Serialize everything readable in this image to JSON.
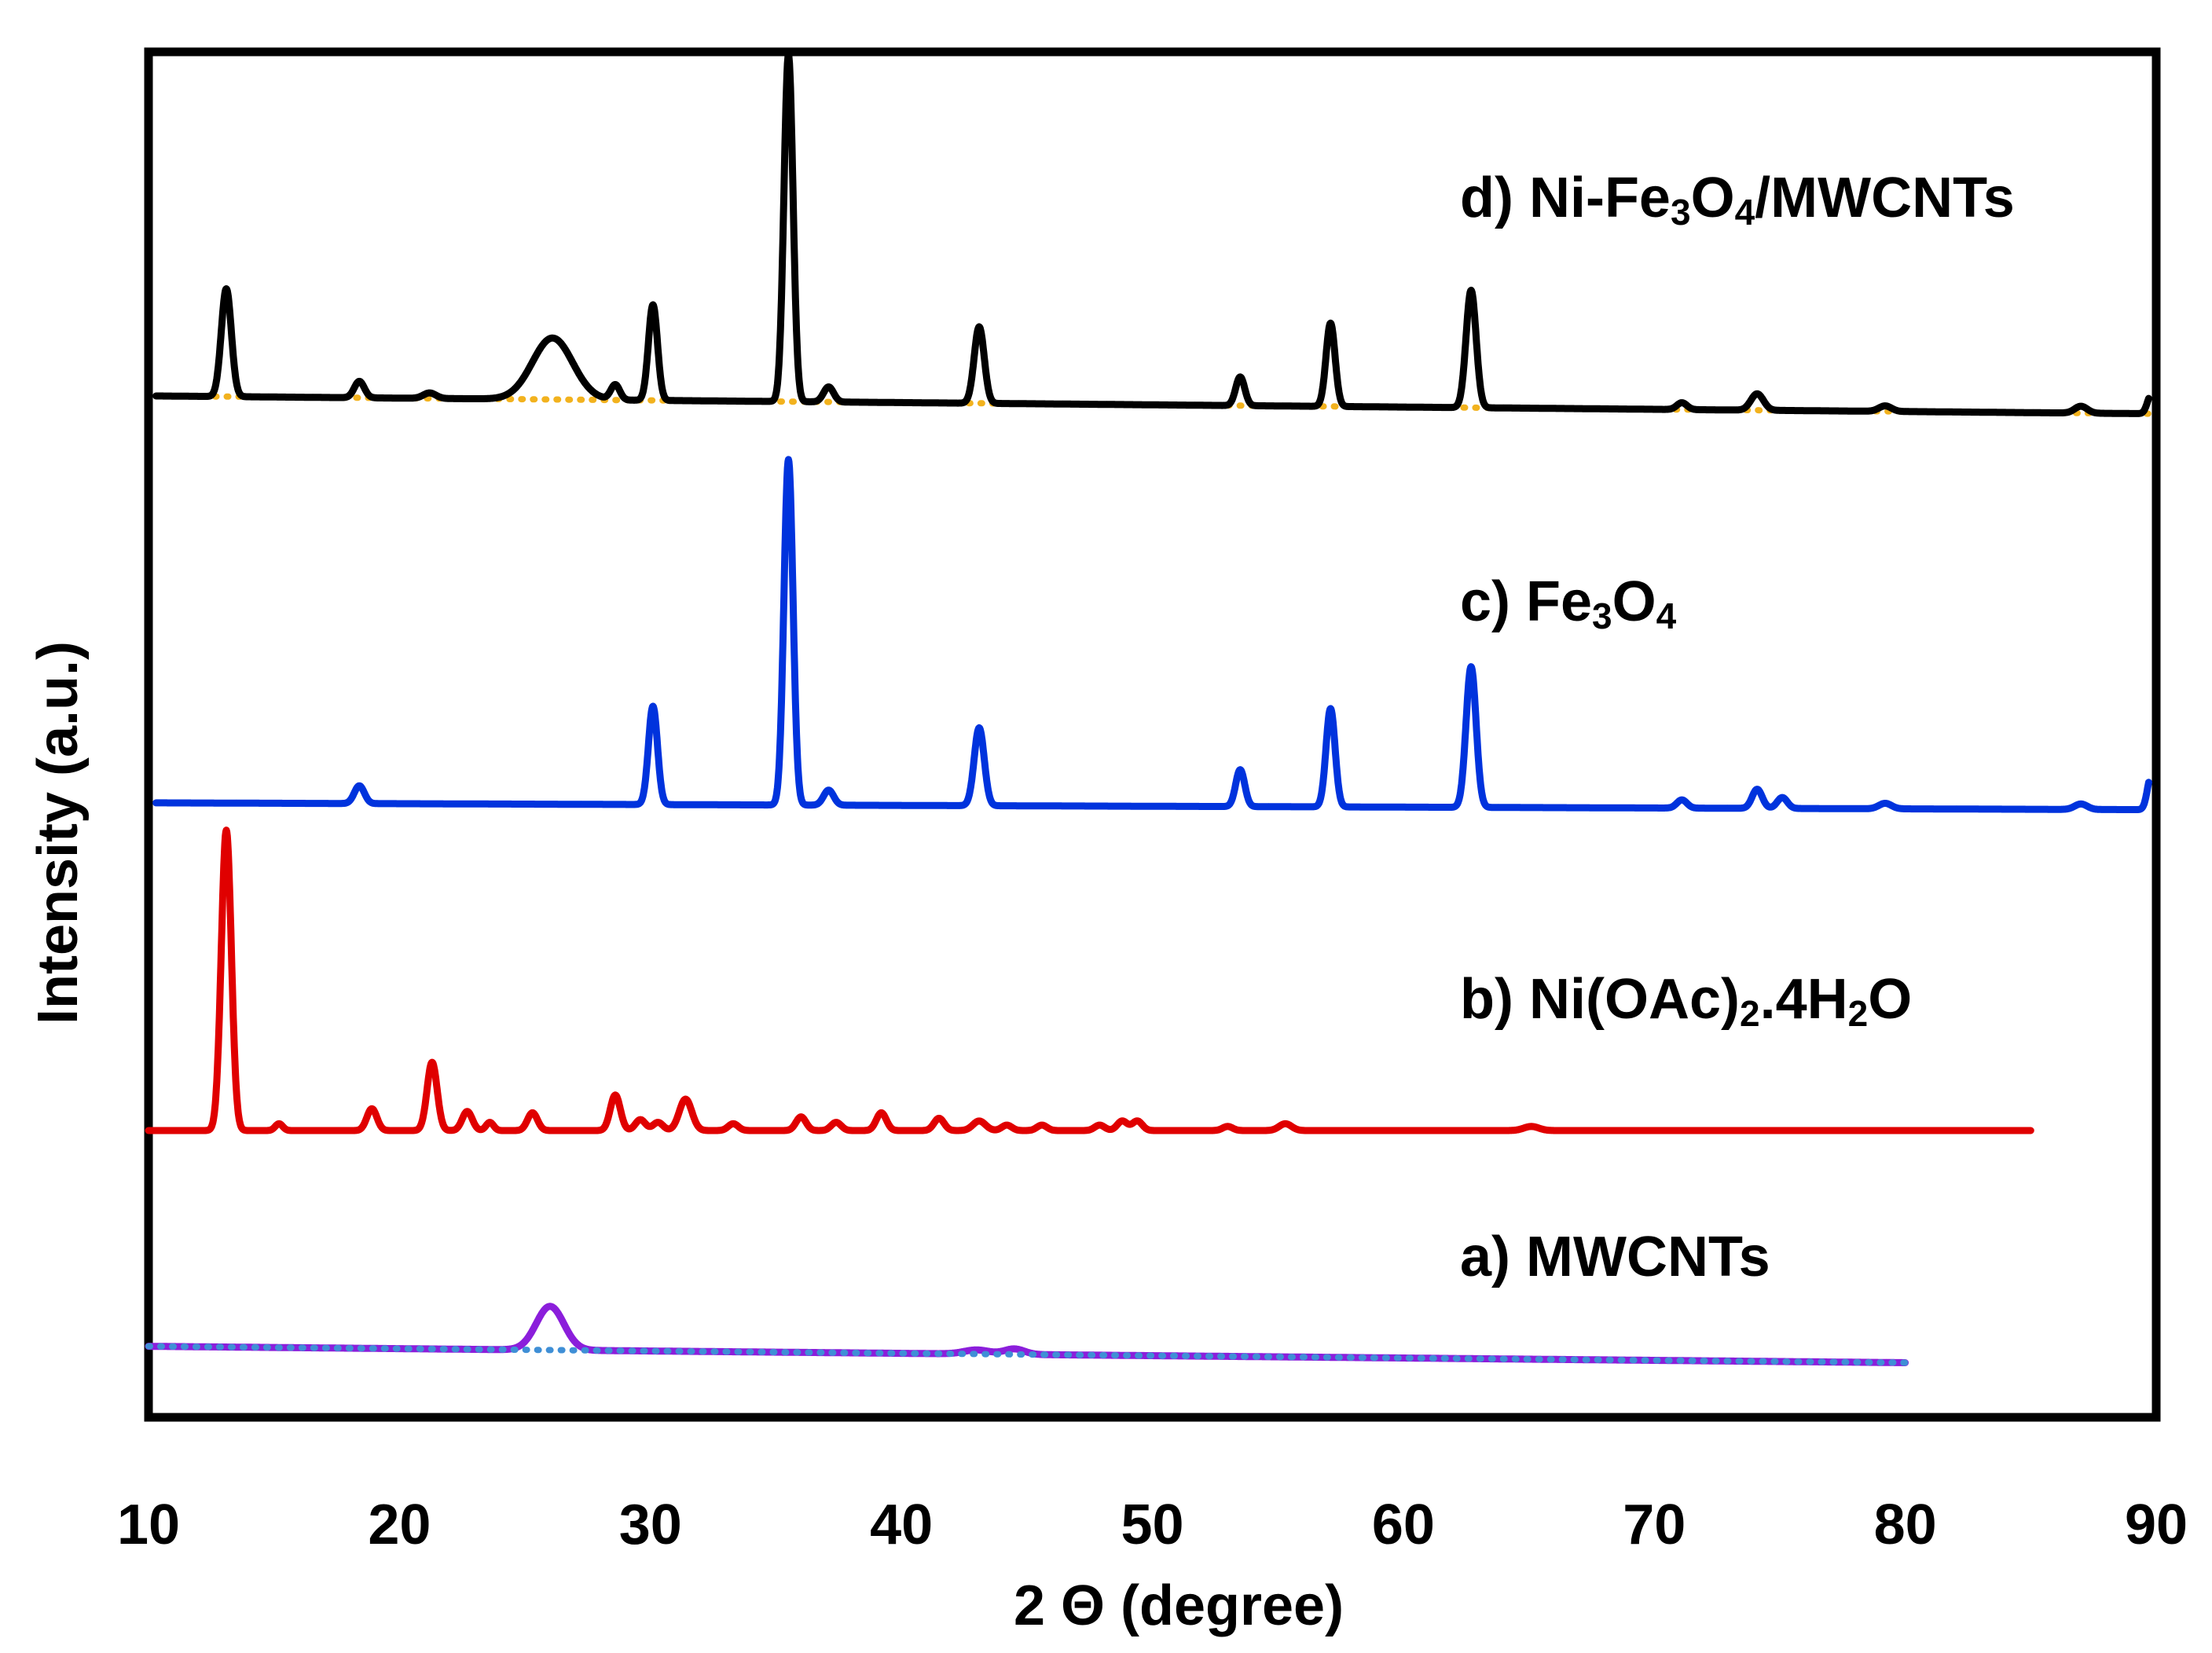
{
  "chart_data": {
    "type": "line",
    "title": "",
    "xlabel": "2 Θ (degree)",
    "ylabel": "Intensity (a.u.)",
    "xlim": [
      10,
      90
    ],
    "ylim": [
      0,
      100
    ],
    "x_ticks": [
      "10",
      "20",
      "30",
      "40",
      "50",
      "60",
      "70",
      "80",
      "90"
    ],
    "grid": false,
    "legend": "none (series labelled inline)",
    "series": [
      {
        "name": "a) MWCNTs",
        "label_main": "a) MWCNTs",
        "color": "#8B1EDB",
        "baseline_color": "#3F8FD6",
        "x_range": [
          10,
          80
        ],
        "baseline_start": 5.2,
        "baseline_end": 4.0,
        "peaks": [
          [
            26.0,
            3.2,
            0.55
          ],
          [
            43.0,
            0.3,
            0.5
          ],
          [
            44.5,
            0.4,
            0.4
          ]
        ]
      },
      {
        "name": "b) Ni(OAc)2.4H2O",
        "label_main": "b) Ni(OAc)",
        "label_sub1": "2",
        "label_mid": ".4H",
        "label_sub2": "2",
        "label_end": "O",
        "color": "#E00000",
        "x_range": [
          10,
          85
        ],
        "baseline_start": 21.0,
        "baseline_end": 21.0,
        "peaks": [
          [
            13.1,
            22.0,
            0.2
          ],
          [
            15.2,
            0.5,
            0.15
          ],
          [
            18.9,
            1.6,
            0.2
          ],
          [
            21.3,
            5.0,
            0.2
          ],
          [
            22.7,
            1.4,
            0.2
          ],
          [
            23.6,
            0.6,
            0.15
          ],
          [
            25.3,
            1.3,
            0.2
          ],
          [
            28.6,
            2.6,
            0.2
          ],
          [
            29.6,
            0.8,
            0.2
          ],
          [
            30.3,
            0.6,
            0.2
          ],
          [
            31.4,
            2.3,
            0.25
          ],
          [
            33.3,
            0.5,
            0.2
          ],
          [
            36.0,
            1.0,
            0.2
          ],
          [
            37.4,
            0.6,
            0.2
          ],
          [
            39.2,
            1.3,
            0.2
          ],
          [
            41.5,
            0.9,
            0.2
          ],
          [
            43.1,
            0.7,
            0.25
          ],
          [
            44.2,
            0.4,
            0.2
          ],
          [
            45.6,
            0.4,
            0.2
          ],
          [
            47.9,
            0.4,
            0.2
          ],
          [
            48.8,
            0.7,
            0.2
          ],
          [
            49.4,
            0.7,
            0.2
          ],
          [
            53.0,
            0.3,
            0.2
          ],
          [
            55.3,
            0.5,
            0.25
          ],
          [
            65.1,
            0.3,
            0.3
          ]
        ]
      },
      {
        "name": "c) Fe3O4",
        "label_main": "c) Fe",
        "label_sub1": "3",
        "label_mid": "O",
        "label_sub2": "4",
        "color": "#0033DD",
        "x_range": [
          10.3,
          89.7
        ],
        "baseline_start": 45.0,
        "baseline_end": 44.5,
        "peaks": [
          [
            18.4,
            1.3,
            0.2
          ],
          [
            30.1,
            7.2,
            0.18
          ],
          [
            35.5,
            25.3,
            0.18
          ],
          [
            37.1,
            1.1,
            0.2
          ],
          [
            43.1,
            5.7,
            0.2
          ],
          [
            53.5,
            2.7,
            0.18
          ],
          [
            57.1,
            7.2,
            0.18
          ],
          [
            62.7,
            10.3,
            0.2
          ],
          [
            71.1,
            0.6,
            0.2
          ],
          [
            74.1,
            1.4,
            0.2
          ],
          [
            75.1,
            0.8,
            0.2
          ],
          [
            79.2,
            0.4,
            0.25
          ],
          [
            87.0,
            0.4,
            0.25
          ],
          [
            89.8,
            2.5,
            0.15
          ]
        ]
      },
      {
        "name": "d) Ni-Fe3O4/MWCNTs",
        "label_main": "d) Ni-Fe",
        "label_sub1": "3",
        "label_mid": "O",
        "label_sub2": "4",
        "label_end": "/MWCNTs",
        "color": "#000000",
        "baseline_color": "#F2B21E",
        "x_range": [
          10.3,
          89.7
        ],
        "baseline_start": 74.8,
        "baseline_end": 73.5,
        "peaks": [
          [
            13.1,
            7.9,
            0.2
          ],
          [
            18.4,
            1.2,
            0.2
          ],
          [
            21.2,
            0.4,
            0.25
          ],
          [
            26.1,
            4.5,
            0.8
          ],
          [
            28.6,
            1.1,
            0.18
          ],
          [
            30.1,
            7.0,
            0.18
          ],
          [
            35.5,
            25.4,
            0.18
          ],
          [
            37.1,
            1.1,
            0.2
          ],
          [
            43.1,
            5.6,
            0.2
          ],
          [
            53.5,
            2.1,
            0.18
          ],
          [
            57.1,
            6.1,
            0.18
          ],
          [
            62.7,
            8.6,
            0.2
          ],
          [
            71.1,
            0.5,
            0.2
          ],
          [
            74.1,
            1.2,
            0.25
          ],
          [
            79.2,
            0.4,
            0.25
          ],
          [
            87.0,
            0.5,
            0.25
          ],
          [
            89.8,
            1.4,
            0.15
          ]
        ]
      }
    ]
  }
}
